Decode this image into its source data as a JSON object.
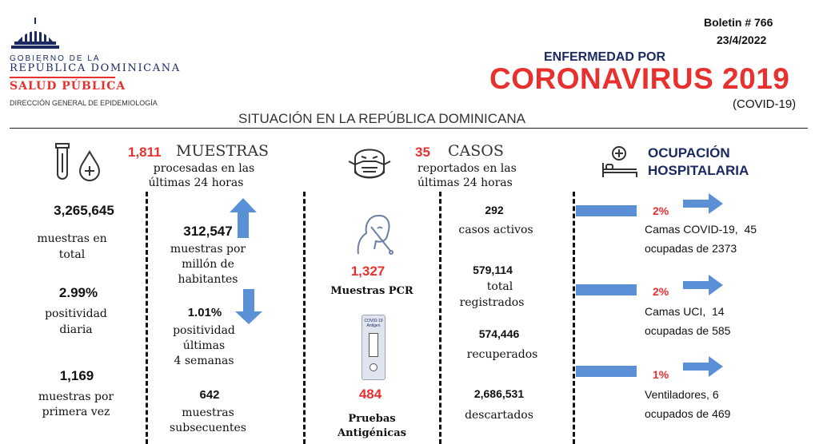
{
  "logo": {
    "gov_line1": "GOBIERNO DE LA",
    "gov_line2": "REPÚBLICA DOMINICANA",
    "ministry": "SALUD PÚBLICA",
    "direction": "DIRECCIÓN GENERAL DE EPIDEMIOLOGÍA"
  },
  "header": {
    "bulletin": "Boletin # 766",
    "date": "23/4/2022",
    "pre_title": "ENFERMEDAD POR",
    "title": "CORONAVIRUS 2019",
    "subtitle": "(COVID-19)",
    "situation": "SITUACIÓN EN LA REPÚBLICA DOMINICANA"
  },
  "muestras": {
    "daily_value": "1,811",
    "heading": "MUESTRAS",
    "sub1": "procesadas en las",
    "sub2": "últimas 24 horas",
    "total_value": "3,265,645",
    "total_label1": "muestras en",
    "total_label2": "total",
    "positividad_value": "2.99%",
    "positividad_label1": "positividad",
    "positividad_label2": "diaria",
    "first_value": "1,169",
    "first_label1": "muestras por",
    "first_label2": "primera vez",
    "per_million_value": "312,547",
    "per_million_label1": "muestras por",
    "per_million_label2": "millón de",
    "per_million_label3": "habitantes",
    "pos4w_value": "1.01%",
    "pos4w_label1": "positividad",
    "pos4w_label2": "últimas",
    "pos4w_label3": "4 semanas",
    "subseq_value": "642",
    "subseq_label1": "muestras",
    "subseq_label2": "subsecuentes"
  },
  "casos": {
    "daily_value": "35",
    "heading": "CASOS",
    "sub1": "reportados en las",
    "sub2": "últimas 24 horas",
    "pcr_value": "1,327",
    "pcr_label": "Muestras PCR",
    "antigen_value": "484",
    "antigen_label1": "Pruebas",
    "antigen_label2": "Antigénicas",
    "kit_text": "COVID-19 Antigen",
    "active_value": "292",
    "active_label": "casos activos",
    "registered_value": "579,114",
    "registered_label1": "total",
    "registered_label2": "registrados",
    "recovered_value": "574,446",
    "recovered_label": "recuperados",
    "discarded_value": "2,686,531",
    "discarded_label": "descartados"
  },
  "ocupacion": {
    "heading1": "OCUPACIÓN",
    "heading2": "HOSPITALARIA",
    "items": [
      {
        "percent": "2%",
        "line1": "Camas COVID-19,  45",
        "line2": "ocupadas de 2373",
        "fraction": 0.02
      },
      {
        "percent": "2%",
        "line1": "Camas UCI,  14",
        "line2": "ocupadas de 585",
        "fraction": 0.02
      },
      {
        "percent": "1%",
        "line1": "Ventiladores, 6",
        "line2": "ocupados de 469",
        "fraction": 0.01
      }
    ]
  },
  "colors": {
    "red": "#e8302f",
    "navy": "#1b2a63",
    "blue": "#5b8fd6"
  }
}
